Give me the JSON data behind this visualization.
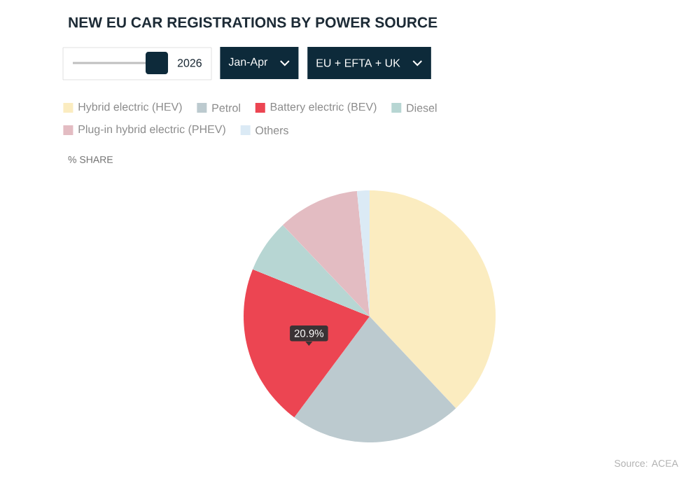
{
  "chart_data": {
    "type": "pie",
    "title": "NEW EU CAR REGISTRATIONS BY POWER SOURCE",
    "subtitle": "% SHARE",
    "categories": [
      "Hybrid electric (HEV)",
      "Petrol",
      "Battery electric (BEV)",
      "Diesel",
      "Plug-in hybrid electric (PHEV)",
      "Others"
    ],
    "values": [
      38.0,
      22.2,
      20.9,
      6.8,
      10.5,
      1.6
    ],
    "colors": [
      "#fbecc0",
      "#bccacf",
      "#ec4552",
      "#b7d6d3",
      "#e3bcc2",
      "#dbeaf5"
    ],
    "value_labels": [
      null,
      null,
      "20.9%",
      null,
      null,
      null
    ],
    "legend": "top left",
    "annotations": [
      "2026",
      "Jan-Apr",
      "EU + EFTA + UK",
      "Source:  ACEA"
    ]
  }
}
